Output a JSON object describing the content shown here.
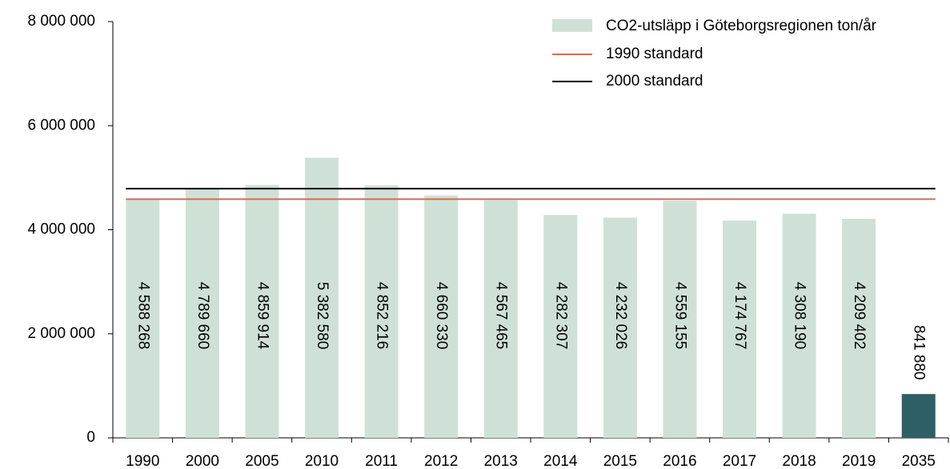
{
  "chart_data": {
    "type": "bar",
    "categories": [
      "1990",
      "2000",
      "2005",
      "2010",
      "2011",
      "2012",
      "2013",
      "2014",
      "2015",
      "2016",
      "2017",
      "2018",
      "2019",
      "2035"
    ],
    "series": [
      {
        "name": "CO2-utsläpp i Göteborgsregionen ton/år",
        "color": "#cfe1d6",
        "colors": [
          "#cfe1d6",
          "#cfe1d6",
          "#cfe1d6",
          "#cfe1d6",
          "#cfe1d6",
          "#cfe1d6",
          "#cfe1d6",
          "#cfe1d6",
          "#cfe1d6",
          "#cfe1d6",
          "#cfe1d6",
          "#cfe1d6",
          "#cfe1d6",
          "#2f5f66"
        ],
        "values": [
          4588268,
          4789660,
          4859914,
          5382580,
          4852216,
          4660330,
          4567465,
          4282307,
          4232026,
          4559155,
          4174767,
          4308190,
          4209402,
          841880
        ],
        "value_labels": [
          "4 588 268",
          "4 789 660",
          "4 859 914",
          "5 382 580",
          "4 852 216",
          "4 660 330",
          "4 567 465",
          "4 282 307",
          "4 232 026",
          "4 559 155",
          "4 174 767",
          "4 308 190",
          "4 209 402",
          "841 880"
        ]
      }
    ],
    "reference_lines": [
      {
        "name": "1990 standard",
        "color": "#d2704f",
        "value": 4588268
      },
      {
        "name": "2000 standard",
        "color": "#000000",
        "value": 4789660
      }
    ],
    "ylim": [
      0,
      8000000
    ],
    "yticks": [
      0,
      {
        "value": 2000000,
        "label": "2 000 000"
      },
      {
        "value": 4000000,
        "label": "4 000 000"
      },
      {
        "value": 6000000,
        "label": "6 000 000"
      },
      {
        "value": 8000000,
        "label": "8 000 000"
      }
    ],
    "legend": "top-right"
  }
}
